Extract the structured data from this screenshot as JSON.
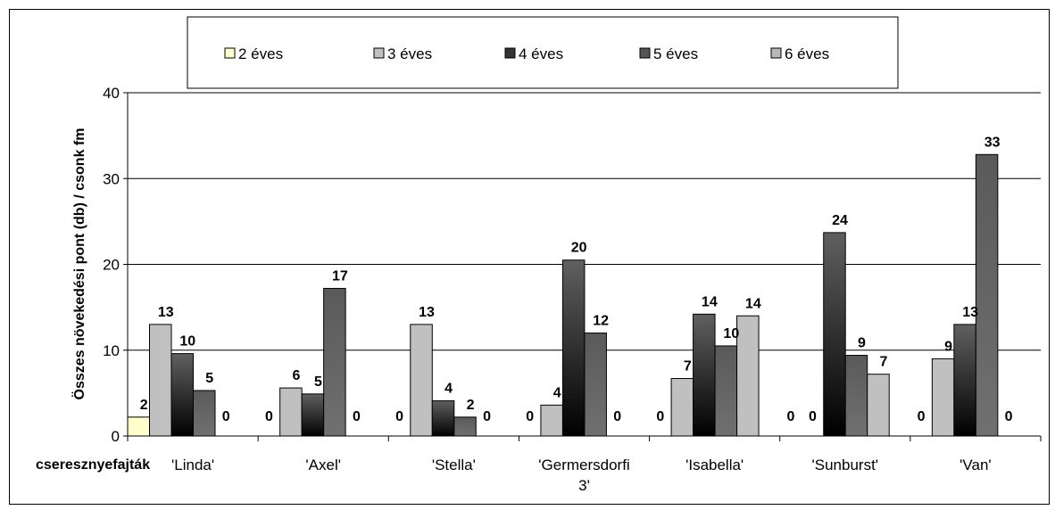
{
  "chart_data": {
    "type": "bar",
    "categories": [
      "'Linda'",
      "'Axel'",
      "'Stella'",
      "'Germersdorfi 3'",
      "'Isabella'",
      "'Sunburst'",
      "'Van'"
    ],
    "category_lines": [
      [
        "'Linda'"
      ],
      [
        "'Axel'"
      ],
      [
        "'Stella'"
      ],
      [
        "'Germersdorfi",
        "3'"
      ],
      [
        "'Isabella'"
      ],
      [
        "'Sunburst'"
      ],
      [
        "'Van'"
      ]
    ],
    "series": [
      {
        "name": "2 éves",
        "values": [
          2.2,
          0,
          0,
          0,
          0,
          0,
          0
        ],
        "labels": [
          "2",
          "0",
          "0",
          "0",
          "0",
          "0",
          "0"
        ],
        "color": "#ffffcc"
      },
      {
        "name": "3 éves",
        "values": [
          13,
          5.6,
          13,
          3.6,
          6.7,
          0,
          9
        ],
        "labels": [
          "13",
          "6",
          "13",
          "4",
          "7",
          "0",
          "9"
        ],
        "color": "#c0c0c0"
      },
      {
        "name": "4 éves",
        "values": [
          9.6,
          4.9,
          4.1,
          20.5,
          14.2,
          23.7,
          13
        ],
        "labels": [
          "10",
          "5",
          "4",
          "20",
          "14",
          "24",
          "13"
        ],
        "color": "#333333"
      },
      {
        "name": "5 éves",
        "values": [
          5.3,
          17.2,
          2.2,
          12,
          10.5,
          9.4,
          32.8
        ],
        "labels": [
          "5",
          "17",
          "2",
          "12",
          "10",
          "9",
          "33"
        ],
        "color": "#555555"
      },
      {
        "name": "6 éves",
        "values": [
          0,
          0,
          0,
          0,
          14,
          7.2,
          0
        ],
        "labels": [
          "0",
          "0",
          "0",
          "0",
          "14",
          "7",
          "0"
        ],
        "color": "#b8b8b8"
      }
    ],
    "ylabel": "Összes növekedési pont (db) / csonk fm",
    "xlabel": "cseresznyefajták",
    "ylim": [
      0,
      40
    ],
    "yticks": [
      0,
      10,
      20,
      30,
      40
    ],
    "grid": true,
    "legend_position": "top"
  }
}
